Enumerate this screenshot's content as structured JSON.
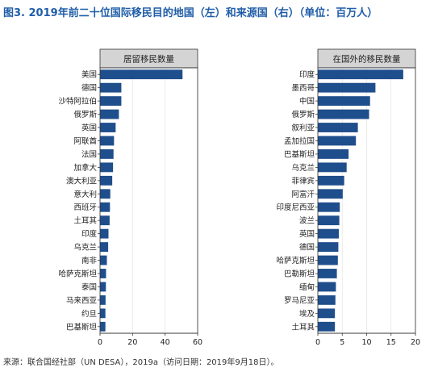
{
  "figure": {
    "title": "图3. 2019年前二十位国际移民目的地国（左）和来源国（右）（单位：百万人）",
    "source": "来源：联合国经社部（UN DESA），2019a（访问日期：2019年9月18日）。"
  },
  "colors": {
    "bar": "#1f4e8c",
    "strip": "#d4d4d4",
    "grid": "#e6e6e6",
    "title": "#1f5da8"
  },
  "chart_data": [
    {
      "type": "bar",
      "orientation": "horizontal",
      "title": "居留移民数量",
      "categories": [
        "美国",
        "德国",
        "沙特阿拉伯",
        "俄罗斯",
        "英国",
        "阿联酋",
        "法国",
        "加拿大",
        "澳大利亚",
        "意大利",
        "西班牙",
        "土耳其",
        "印度",
        "乌克兰",
        "南非",
        "哈萨克斯坦",
        "泰国",
        "马来西亚",
        "约旦",
        "巴基斯坦"
      ],
      "values": [
        50.7,
        13.1,
        13.1,
        11.6,
        9.6,
        8.6,
        8.3,
        8.0,
        7.5,
        6.3,
        6.1,
        5.9,
        5.2,
        5.0,
        4.2,
        3.7,
        3.6,
        3.4,
        3.3,
        3.3
      ],
      "xlim": [
        0,
        60
      ],
      "xticks": [
        0,
        20,
        40,
        60
      ],
      "grid": true
    },
    {
      "type": "bar",
      "orientation": "horizontal",
      "title": "在国外的移民数量",
      "categories": [
        "印度",
        "墨西哥",
        "中国",
        "俄罗斯",
        "叙利亚",
        "孟加拉国",
        "巴基斯坦",
        "乌克兰",
        "菲律宾",
        "阿富汗",
        "印度尼西亚",
        "波兰",
        "英国",
        "德国",
        "哈萨克斯坦",
        "巴勒斯坦",
        "缅甸",
        "罗马尼亚",
        "埃及",
        "土耳其"
      ],
      "values": [
        17.5,
        11.8,
        10.7,
        10.5,
        8.2,
        7.8,
        6.3,
        5.9,
        5.4,
        5.1,
        4.5,
        4.4,
        4.3,
        4.2,
        4.1,
        3.9,
        3.7,
        3.6,
        3.5,
        3.5
      ],
      "xlim": [
        0,
        20
      ],
      "xticks": [
        0,
        5,
        10,
        15,
        20
      ],
      "grid": true
    }
  ]
}
